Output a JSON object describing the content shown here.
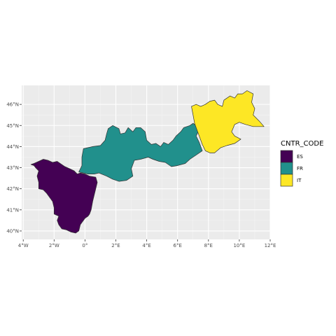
{
  "chart_data": {
    "type": "choropleth-map",
    "legend": {
      "title": "CNTR_CODE",
      "placement": "right",
      "entries": [
        {
          "code": "ES",
          "color": "#440154"
        },
        {
          "code": "FR",
          "color": "#21908C"
        },
        {
          "code": "IT",
          "color": "#FDE725"
        }
      ]
    },
    "x_axis": {
      "range": [
        -4.1,
        12.0
      ],
      "ticks": [
        {
          "value": -4,
          "label": "4°W"
        },
        {
          "value": -2,
          "label": "2°W"
        },
        {
          "value": 0,
          "label": "0°"
        },
        {
          "value": 2,
          "label": "2°E"
        },
        {
          "value": 4,
          "label": "4°E"
        },
        {
          "value": 6,
          "label": "6°E"
        },
        {
          "value": 8,
          "label": "8°E"
        },
        {
          "value": 10,
          "label": "10°E"
        },
        {
          "value": 12,
          "label": "12°E"
        }
      ]
    },
    "y_axis": {
      "range": [
        39.6,
        46.9
      ],
      "ticks": [
        {
          "value": 40,
          "label": "40°N"
        },
        {
          "value": 41,
          "label": "41°N"
        },
        {
          "value": 42,
          "label": "42°N"
        },
        {
          "value": 43,
          "label": "43°N"
        },
        {
          "value": 44,
          "label": "44°N"
        },
        {
          "value": 45,
          "label": "45°N"
        },
        {
          "value": 46,
          "label": "46°N"
        }
      ]
    },
    "grid": true,
    "panel_background": "#EBEBEB",
    "border_color": "#333333",
    "regions": [
      {
        "code": "ES",
        "outline": [
          [
            -3.3,
            43.2
          ],
          [
            -3.0,
            43.3
          ],
          [
            -2.7,
            43.4
          ],
          [
            -2.4,
            43.35
          ],
          [
            -2.1,
            43.25
          ],
          [
            -1.8,
            43.3
          ],
          [
            -1.6,
            43.2
          ],
          [
            -1.3,
            43.05
          ],
          [
            -1.0,
            42.95
          ],
          [
            -0.7,
            42.85
          ],
          [
            -0.5,
            42.7
          ],
          [
            -0.3,
            42.75
          ],
          [
            0.0,
            42.7
          ],
          [
            0.3,
            42.6
          ],
          [
            0.7,
            42.55
          ],
          [
            0.8,
            42.3
          ],
          [
            0.7,
            42.0
          ],
          [
            0.6,
            41.7
          ],
          [
            0.5,
            41.4
          ],
          [
            0.4,
            41.0
          ],
          [
            0.3,
            40.8
          ],
          [
            0.2,
            40.7
          ],
          [
            0.0,
            40.6
          ],
          [
            -0.2,
            40.4
          ],
          [
            -0.3,
            40.3
          ],
          [
            -0.4,
            40.0
          ],
          [
            -0.6,
            39.9
          ],
          [
            -0.9,
            39.95
          ],
          [
            -1.2,
            40.05
          ],
          [
            -1.5,
            40.1
          ],
          [
            -1.7,
            40.3
          ],
          [
            -1.8,
            40.5
          ],
          [
            -1.7,
            40.7
          ],
          [
            -2.0,
            40.8
          ],
          [
            -2.0,
            41.1
          ],
          [
            -2.1,
            41.4
          ],
          [
            -2.3,
            41.6
          ],
          [
            -2.5,
            41.8
          ],
          [
            -2.7,
            41.95
          ],
          [
            -3.0,
            42.0
          ],
          [
            -3.0,
            42.3
          ],
          [
            -3.1,
            42.6
          ],
          [
            -3.0,
            42.85
          ],
          [
            -3.2,
            43.0
          ],
          [
            -3.3,
            43.1
          ],
          [
            -3.5,
            43.15
          ]
        ]
      },
      {
        "code": "FR",
        "outline": [
          [
            -0.4,
            42.8
          ],
          [
            -0.2,
            43.1
          ],
          [
            -0.2,
            43.5
          ],
          [
            -0.1,
            43.9
          ],
          [
            0.5,
            44.0
          ],
          [
            1.0,
            44.05
          ],
          [
            1.3,
            44.3
          ],
          [
            1.4,
            44.6
          ],
          [
            1.5,
            44.85
          ],
          [
            1.8,
            45.0
          ],
          [
            2.2,
            44.85
          ],
          [
            2.3,
            44.6
          ],
          [
            2.6,
            44.65
          ],
          [
            2.8,
            44.9
          ],
          [
            3.1,
            44.7
          ],
          [
            3.3,
            44.9
          ],
          [
            3.6,
            44.9
          ],
          [
            3.9,
            44.7
          ],
          [
            4.0,
            44.3
          ],
          [
            4.3,
            44.1
          ],
          [
            4.6,
            44.15
          ],
          [
            4.9,
            44.0
          ],
          [
            5.1,
            44.2
          ],
          [
            5.4,
            44.1
          ],
          [
            5.7,
            44.3
          ],
          [
            5.9,
            44.5
          ],
          [
            6.2,
            44.7
          ],
          [
            6.4,
            44.9
          ],
          [
            6.8,
            45.0
          ],
          [
            7.0,
            45.1
          ],
          [
            7.2,
            45.0
          ],
          [
            7.4,
            44.8
          ],
          [
            7.2,
            44.5
          ],
          [
            7.4,
            44.2
          ],
          [
            7.6,
            43.8
          ],
          [
            7.2,
            43.6
          ],
          [
            6.8,
            43.4
          ],
          [
            6.5,
            43.2
          ],
          [
            6.0,
            43.1
          ],
          [
            5.6,
            43.05
          ],
          [
            5.2,
            43.25
          ],
          [
            4.8,
            43.3
          ],
          [
            4.4,
            43.4
          ],
          [
            4.1,
            43.5
          ],
          [
            3.6,
            43.4
          ],
          [
            3.2,
            43.35
          ],
          [
            3.0,
            42.95
          ],
          [
            3.1,
            42.6
          ],
          [
            2.7,
            42.4
          ],
          [
            2.2,
            42.35
          ],
          [
            1.8,
            42.45
          ],
          [
            1.4,
            42.6
          ],
          [
            0.9,
            42.75
          ],
          [
            0.6,
            42.7
          ],
          [
            0.2,
            42.7
          ]
        ]
      },
      {
        "code": "IT",
        "outline": [
          [
            7.1,
            45.1
          ],
          [
            7.0,
            45.5
          ],
          [
            6.9,
            45.9
          ],
          [
            7.2,
            46.0
          ],
          [
            7.5,
            45.9
          ],
          [
            7.8,
            46.0
          ],
          [
            8.1,
            46.15
          ],
          [
            8.4,
            46.2
          ],
          [
            8.6,
            46.0
          ],
          [
            8.9,
            45.9
          ],
          [
            9.0,
            46.2
          ],
          [
            9.4,
            46.4
          ],
          [
            9.7,
            46.3
          ],
          [
            9.9,
            46.5
          ],
          [
            10.2,
            46.5
          ],
          [
            10.5,
            46.65
          ],
          [
            10.9,
            46.5
          ],
          [
            10.8,
            46.1
          ],
          [
            11.0,
            45.8
          ],
          [
            10.9,
            45.5
          ],
          [
            11.3,
            45.2
          ],
          [
            11.6,
            44.95
          ],
          [
            10.9,
            44.95
          ],
          [
            10.4,
            45.05
          ],
          [
            10.0,
            45.15
          ],
          [
            9.7,
            45.05
          ],
          [
            9.5,
            44.7
          ],
          [
            9.7,
            44.5
          ],
          [
            10.1,
            44.35
          ],
          [
            9.7,
            44.15
          ],
          [
            9.2,
            44.05
          ],
          [
            8.8,
            43.95
          ],
          [
            8.4,
            43.7
          ],
          [
            8.1,
            43.7
          ],
          [
            7.8,
            43.8
          ],
          [
            7.6,
            44.1
          ],
          [
            7.4,
            44.5
          ]
        ]
      }
    ]
  }
}
